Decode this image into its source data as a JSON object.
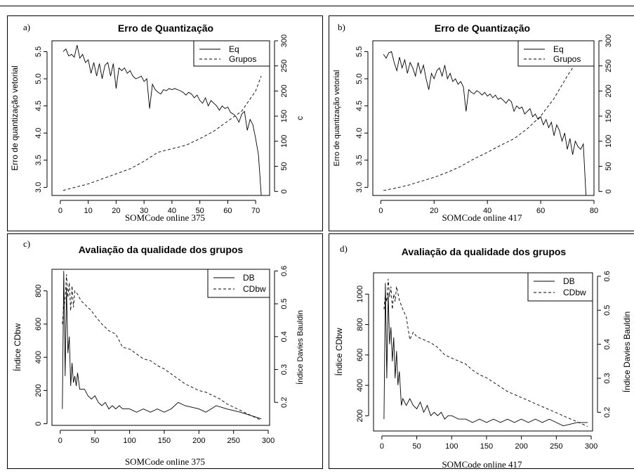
{
  "chart_data": [
    {
      "id": "a",
      "type": "line",
      "panel_label": "a)",
      "title": "Erro de Quantização",
      "xlabel": "SOMCode online 375",
      "ylabel": "Erro de quantização vetorial",
      "ylabel_right": "c",
      "xlim": [
        -3,
        75
      ],
      "ylim": [
        2.85,
        5.7
      ],
      "ylim_right": [
        -8,
        300
      ],
      "xticks": [
        0,
        10,
        20,
        30,
        40,
        50,
        60,
        70
      ],
      "yticks": [
        3.0,
        3.5,
        4.0,
        4.5,
        5.0,
        5.5
      ],
      "yticks_right": [
        0,
        50,
        100,
        150,
        200,
        250,
        300
      ],
      "legend_position": "top-right",
      "series": [
        {
          "name": "Eq",
          "axis": "left",
          "dash": "solid",
          "x": [
            1,
            2,
            3,
            4,
            5,
            6,
            7,
            8,
            9,
            10,
            11,
            12,
            13,
            14,
            15,
            16,
            17,
            18,
            19,
            20,
            21,
            22,
            23,
            24,
            25,
            26,
            27,
            28,
            29,
            30,
            31,
            32,
            33,
            34,
            35,
            36,
            37,
            38,
            39,
            40,
            41,
            42,
            43,
            44,
            45,
            46,
            47,
            48,
            49,
            50,
            51,
            52,
            53,
            54,
            55,
            56,
            57,
            58,
            59,
            60,
            61,
            62,
            63,
            64,
            65,
            66,
            67,
            68,
            69,
            70,
            71,
            72
          ],
          "y": [
            5.5,
            5.55,
            5.42,
            5.45,
            5.4,
            5.62,
            5.38,
            5.45,
            5.3,
            5.35,
            5.1,
            5.3,
            5.05,
            5.28,
            5.0,
            5.25,
            5.3,
            5.05,
            5.28,
            4.82,
            5.2,
            5.15,
            5.2,
            5.1,
            5.15,
            5.05,
            5.0,
            5.02,
            5.05,
            4.95,
            5.0,
            4.45,
            4.9,
            4.8,
            4.75,
            4.72,
            4.8,
            4.78,
            4.82,
            4.8,
            4.82,
            4.8,
            4.78,
            4.75,
            4.7,
            4.75,
            4.72,
            4.65,
            4.7,
            4.6,
            4.55,
            4.65,
            4.5,
            4.6,
            4.55,
            4.5,
            4.42,
            4.5,
            4.45,
            4.48,
            4.38,
            4.35,
            4.3,
            4.2,
            4.35,
            4.4,
            4.05,
            4.25,
            4.15,
            3.9,
            3.6,
            2.85
          ]
        },
        {
          "name": "Grupos",
          "axis": "right",
          "dash": "dashed",
          "x": [
            1,
            5,
            10,
            15,
            20,
            25,
            30,
            35,
            40,
            45,
            50,
            55,
            60,
            65,
            70,
            72
          ],
          "y": [
            2,
            8,
            15,
            25,
            35,
            45,
            60,
            78,
            85,
            92,
            105,
            120,
            140,
            160,
            200,
            230
          ]
        }
      ]
    },
    {
      "id": "b",
      "type": "line",
      "panel_label": "b)",
      "title": "Erro de Quantização",
      "xlabel": "SOMCode online 417",
      "ylabel": "Erro de quantização vetorial",
      "xlim": [
        -3,
        80
      ],
      "ylim": [
        2.85,
        5.7
      ],
      "ylim_right": [
        -8,
        300
      ],
      "xticks": [
        0,
        20,
        40,
        60,
        80
      ],
      "yticks": [
        3.0,
        3.5,
        4.0,
        4.5,
        5.0,
        5.5
      ],
      "yticks_right": [
        0,
        50,
        100,
        150,
        200,
        250,
        300
      ],
      "legend_position": "top-right",
      "series": [
        {
          "name": "Eq",
          "axis": "left",
          "dash": "solid",
          "x": [
            1,
            2,
            3,
            4,
            5,
            6,
            7,
            8,
            9,
            10,
            11,
            12,
            13,
            14,
            15,
            16,
            17,
            18,
            19,
            20,
            21,
            22,
            23,
            24,
            25,
            26,
            27,
            28,
            29,
            30,
            31,
            32,
            33,
            34,
            35,
            36,
            37,
            38,
            39,
            40,
            41,
            42,
            43,
            44,
            45,
            46,
            47,
            48,
            49,
            50,
            51,
            52,
            53,
            54,
            55,
            56,
            57,
            58,
            59,
            60,
            61,
            62,
            63,
            64,
            65,
            66,
            67,
            68,
            69,
            70,
            71,
            72,
            73,
            74,
            75,
            76,
            77
          ],
          "y": [
            5.45,
            5.38,
            5.48,
            5.5,
            5.3,
            5.15,
            5.4,
            5.2,
            5.35,
            5.1,
            5.3,
            5.2,
            5.05,
            5.3,
            5.1,
            5.25,
            5.0,
            4.8,
            5.1,
            5.0,
            5.15,
            5.2,
            5.05,
            5.25,
            5.0,
            5.1,
            4.95,
            5.0,
            4.9,
            4.95,
            4.85,
            4.4,
            4.8,
            4.75,
            4.72,
            4.78,
            4.75,
            4.7,
            4.75,
            4.68,
            4.72,
            4.65,
            4.7,
            4.62,
            4.65,
            4.6,
            4.55,
            4.62,
            4.58,
            4.4,
            4.5,
            4.45,
            4.48,
            4.35,
            4.4,
            4.45,
            4.3,
            4.35,
            4.25,
            4.3,
            4.15,
            4.25,
            4.1,
            4.2,
            3.95,
            4.15,
            4.05,
            3.85,
            4.0,
            3.7,
            3.9,
            3.6,
            3.85,
            3.75,
            3.7,
            3.8,
            2.85
          ]
        },
        {
          "name": "Grupos",
          "axis": "right",
          "dash": "dashed",
          "x": [
            1,
            5,
            10,
            15,
            20,
            25,
            30,
            35,
            40,
            45,
            50,
            55,
            60,
            65,
            70,
            75,
            77
          ],
          "y": [
            2,
            6,
            12,
            20,
            28,
            38,
            50,
            65,
            78,
            92,
            105,
            125,
            150,
            185,
            230,
            270,
            285
          ]
        }
      ]
    },
    {
      "id": "c",
      "type": "line",
      "panel_label": "c)",
      "title": "Avaliação da qualidade dos grupos",
      "xlabel": "SOMCode online 375",
      "ylabel": "Índice CDbw",
      "ylabel_right": "Índice Davies Bauldin",
      "xlim": [
        -12,
        302
      ],
      "ylim": [
        -10,
        930
      ],
      "ylim_right": [
        0.13,
        0.605
      ],
      "xticks": [
        0,
        50,
        100,
        150,
        200,
        250,
        300
      ],
      "yticks": [
        0,
        200,
        400,
        600,
        800
      ],
      "yticks_right": [
        0.2,
        0.3,
        0.4,
        0.5,
        0.6
      ],
      "legend_position": "top-right",
      "series": [
        {
          "name": "DB",
          "axis": "right",
          "dash": "solid",
          "x": [
            3,
            5,
            7,
            9,
            11,
            13,
            15,
            17,
            19,
            21,
            23,
            25,
            28,
            30,
            35,
            40,
            45,
            50,
            55,
            60,
            65,
            70,
            75,
            80,
            85,
            90,
            95,
            100,
            110,
            120,
            130,
            140,
            150,
            160,
            170,
            180,
            200,
            210,
            225,
            240,
            260,
            290
          ],
          "y": [
            0.18,
            0.6,
            0.28,
            0.55,
            0.35,
            0.4,
            0.25,
            0.32,
            0.26,
            0.28,
            0.25,
            0.29,
            0.24,
            0.24,
            0.24,
            0.22,
            0.21,
            0.22,
            0.2,
            0.19,
            0.2,
            0.18,
            0.19,
            0.18,
            0.19,
            0.18,
            0.18,
            0.18,
            0.17,
            0.18,
            0.17,
            0.18,
            0.17,
            0.18,
            0.2,
            0.19,
            0.18,
            0.17,
            0.19,
            0.18,
            0.17,
            0.15
          ]
        },
        {
          "name": "CDbw",
          "axis": "left",
          "dash": "dashed",
          "x": [
            3,
            5,
            7,
            9,
            11,
            13,
            15,
            17,
            19,
            21,
            25,
            30,
            35,
            40,
            45,
            50,
            60,
            70,
            80,
            90,
            100,
            110,
            120,
            130,
            140,
            150,
            160,
            170,
            180,
            190,
            200,
            210,
            220,
            230,
            240,
            250,
            260,
            270,
            280,
            290
          ],
          "y": [
            600,
            700,
            750,
            900,
            760,
            850,
            680,
            830,
            700,
            800,
            780,
            740,
            720,
            700,
            680,
            650,
            600,
            560,
            540,
            460,
            450,
            420,
            390,
            380,
            350,
            330,
            300,
            270,
            240,
            220,
            200,
            190,
            170,
            150,
            120,
            100,
            80,
            60,
            40,
            20
          ]
        }
      ]
    },
    {
      "id": "d",
      "type": "line",
      "panel_label": "d)",
      "title": "Avaliação da qualidade dos grupos",
      "xlabel": "SOMCode online 417",
      "ylabel": "Índice CDbw",
      "ylabel_right": "Índice Davies Bauldin",
      "xlim": [
        -12,
        302
      ],
      "ylim": [
        100,
        1140
      ],
      "ylim_right": [
        0.145,
        0.61
      ],
      "xticks": [
        0,
        50,
        100,
        150,
        200,
        250,
        300
      ],
      "yticks": [
        200,
        400,
        600,
        800,
        1000
      ],
      "yticks_right": [
        0.2,
        0.3,
        0.4,
        0.5,
        0.6
      ],
      "legend_position": "top-right",
      "series": [
        {
          "name": "DB",
          "axis": "right",
          "dash": "solid",
          "x": [
            3,
            5,
            7,
            9,
            11,
            13,
            15,
            17,
            19,
            21,
            23,
            25,
            28,
            30,
            35,
            40,
            45,
            50,
            55,
            60,
            65,
            70,
            75,
            80,
            85,
            90,
            95,
            100,
            110,
            120,
            130,
            140,
            150,
            160,
            170,
            180,
            190,
            200,
            210,
            220,
            230,
            240,
            250,
            260,
            280,
            295
          ],
          "y": [
            0.18,
            0.58,
            0.3,
            0.55,
            0.4,
            0.45,
            0.35,
            0.42,
            0.3,
            0.38,
            0.28,
            0.32,
            0.22,
            0.24,
            0.22,
            0.24,
            0.22,
            0.21,
            0.23,
            0.2,
            0.22,
            0.19,
            0.2,
            0.19,
            0.2,
            0.18,
            0.19,
            0.19,
            0.18,
            0.18,
            0.17,
            0.18,
            0.17,
            0.18,
            0.17,
            0.18,
            0.17,
            0.18,
            0.17,
            0.18,
            0.17,
            0.18,
            0.17,
            0.16,
            0.17,
            0.17
          ]
        },
        {
          "name": "CDbw",
          "axis": "left",
          "dash": "dashed",
          "x": [
            3,
            5,
            7,
            9,
            11,
            13,
            15,
            17,
            19,
            21,
            25,
            30,
            35,
            40,
            45,
            50,
            60,
            70,
            80,
            90,
            100,
            110,
            120,
            130,
            140,
            150,
            160,
            170,
            180,
            190,
            200,
            210,
            220,
            230,
            240,
            250,
            260,
            270,
            280,
            290,
            295
          ],
          "y": [
            900,
            1000,
            950,
            1100,
            980,
            1050,
            900,
            1000,
            950,
            1050,
            960,
            900,
            850,
            700,
            750,
            720,
            700,
            680,
            650,
            600,
            580,
            560,
            540,
            500,
            470,
            450,
            420,
            390,
            360,
            340,
            320,
            300,
            280,
            260,
            240,
            220,
            200,
            180,
            160,
            140,
            130
          ]
        }
      ]
    }
  ]
}
